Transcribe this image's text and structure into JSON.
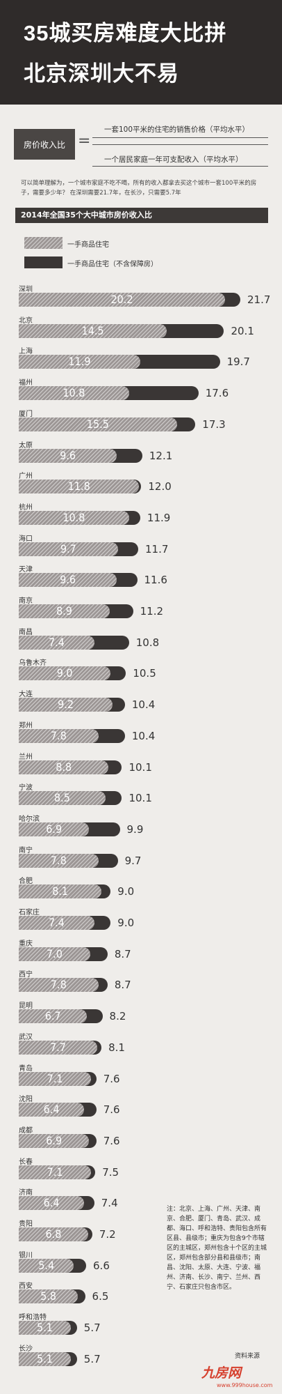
{
  "title_line1": "35城买房难度大比拼",
  "title_line2": "北京深圳大不易",
  "formula": {
    "left_label": "房价收入比",
    "equals": "=",
    "numerator": "一套100平米的住宅的销售价格（平均水平）",
    "denominator": "一个居民家庭一年可支配收入（平均水平）"
  },
  "explanation": "可以简单理解为，一个城市家庭不吃不喝，所有的收入都拿去买这个城市一套100平米的房子，需要多少年？  在深圳需要21.7年，在长沙，只需要5.7年",
  "chart_data": {
    "type": "bar",
    "title": "2014年全国35个大中城市房价收入比",
    "legend": [
      "一手商品住宅",
      "一手商品住宅（不含保障房）"
    ],
    "value_max": 22,
    "categories": [
      "深圳",
      "北京",
      "上海",
      "福州",
      "厦门",
      "太原",
      "广州",
      "杭州",
      "海口",
      "天津",
      "南京",
      "南昌",
      "乌鲁木齐",
      "大连",
      "郑州",
      "兰州",
      "宁波",
      "哈尔滨",
      "南宁",
      "合肥",
      "石家庄",
      "重庆",
      "西宁",
      "昆明",
      "武汉",
      "青岛",
      "沈阳",
      "成都",
      "长春",
      "济南",
      "贵阳",
      "银川",
      "西安",
      "呼和浩特",
      "长沙"
    ],
    "series": [
      {
        "name": "一手商品住宅",
        "values": [
          20.2,
          14.5,
          11.9,
          10.8,
          15.5,
          9.6,
          11.8,
          10.8,
          9.7,
          9.6,
          8.9,
          7.4,
          9.0,
          9.2,
          7.8,
          8.8,
          8.5,
          6.9,
          7.8,
          8.1,
          7.4,
          7.0,
          7.8,
          6.7,
          7.7,
          7.1,
          6.4,
          6.9,
          7.1,
          6.4,
          6.8,
          5.4,
          5.8,
          5.1,
          5.1
        ]
      },
      {
        "name": "一手商品住宅（不含保障房）",
        "values": [
          21.7,
          20.1,
          19.7,
          17.6,
          17.3,
          12.1,
          12.0,
          11.9,
          11.7,
          11.6,
          11.2,
          10.8,
          10.5,
          10.4,
          10.4,
          10.1,
          10.1,
          9.9,
          9.7,
          9.0,
          9.0,
          8.7,
          8.7,
          8.2,
          8.1,
          7.6,
          7.6,
          7.6,
          7.5,
          7.4,
          7.2,
          6.6,
          6.5,
          5.7,
          5.7
        ]
      }
    ]
  },
  "note": "注：北京、上海、广州、天津、南京、合肥、厦门、青岛、武汉、成都、海口、呼和浩特、贵阳包含所有区县、县级市；重庆为包含9个市辖区的主城区，郑州包含十个区的主城区，郑州包含部分县和县级市；南昌、沈阳、太原、大连、宁波、福州、济南、长沙、南宁、兰州、西宁、石家庄只包含市区。",
  "source": "资料来源",
  "logo": "九房网",
  "logo_url": "www.999house.com"
}
